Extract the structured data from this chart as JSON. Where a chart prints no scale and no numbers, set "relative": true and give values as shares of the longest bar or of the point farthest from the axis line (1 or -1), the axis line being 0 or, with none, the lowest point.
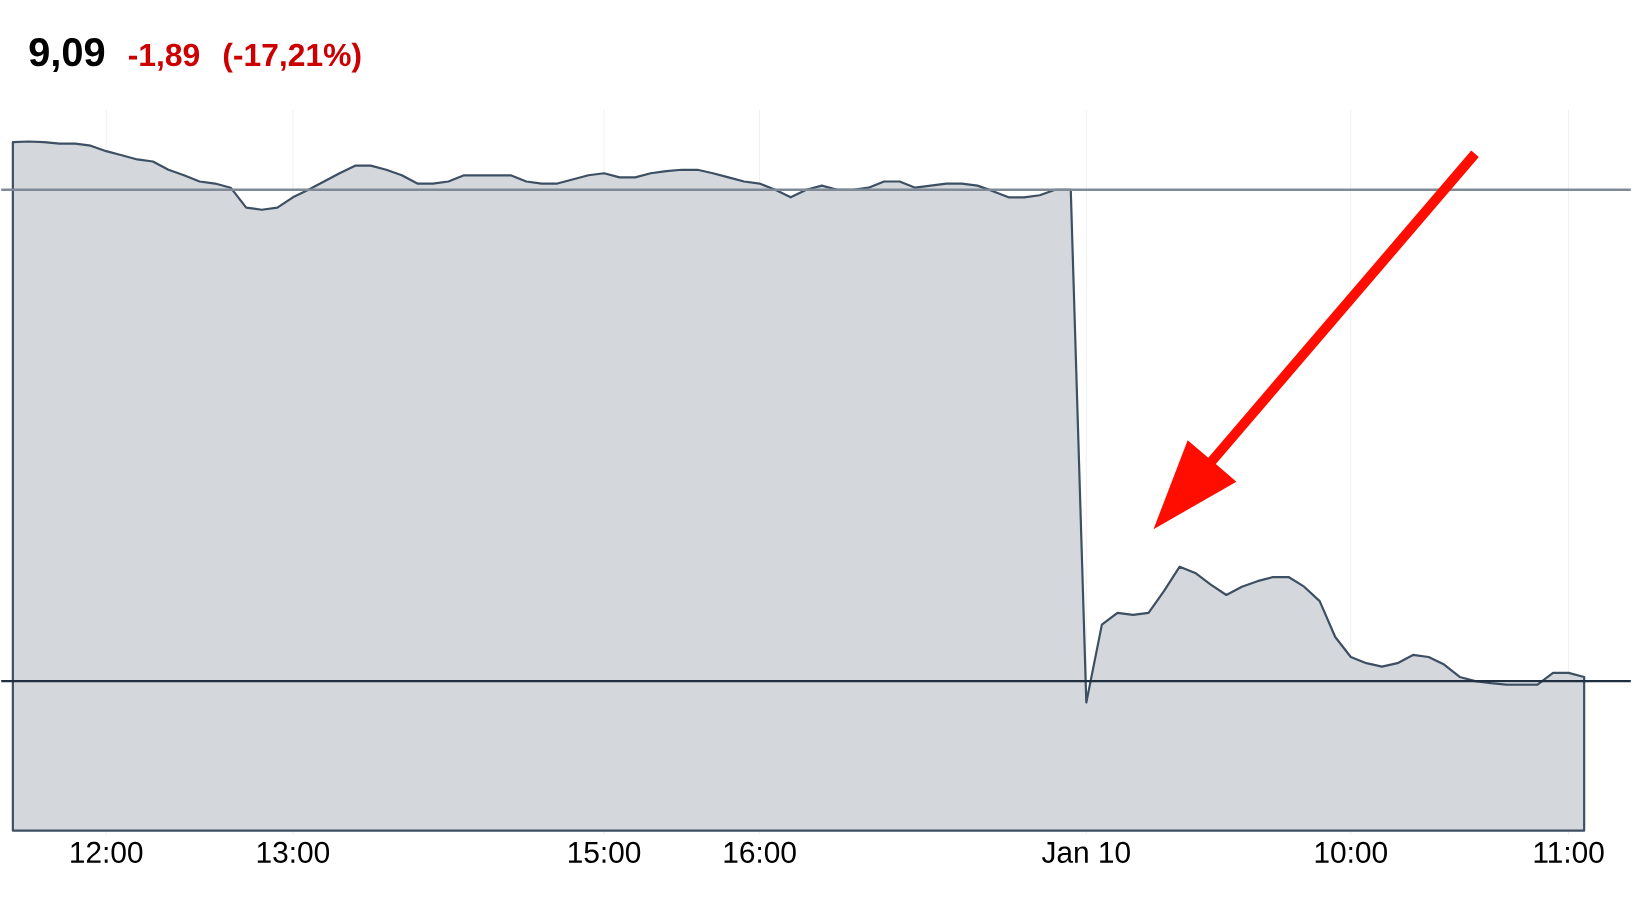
{
  "chart_data": {
    "type": "area",
    "title": "9,09",
    "annotations": [
      "-1,89",
      "(-17,21%)"
    ],
    "relative": true,
    "color": "#3d4f63",
    "grid": "x",
    "categories": [
      null,
      null,
      null,
      null,
      null,
      null,
      "12:00",
      null,
      null,
      null,
      null,
      null,
      null,
      null,
      null,
      null,
      null,
      null,
      "13:00",
      null,
      null,
      null,
      null,
      null,
      null,
      null,
      null,
      null,
      null,
      null,
      null,
      null,
      null,
      null,
      null,
      null,
      null,
      null,
      "15:00",
      null,
      null,
      null,
      null,
      null,
      null,
      null,
      null,
      null,
      "16:00",
      null,
      null,
      null,
      null,
      null,
      null,
      null,
      null,
      null,
      null,
      null,
      null,
      null,
      null,
      null,
      null,
      null,
      null,
      null,
      null,
      "Jan 10",
      null,
      null,
      null,
      null,
      null,
      null,
      null,
      null,
      null,
      null,
      null,
      null,
      null,
      null,
      null,
      null,
      "10:00",
      null,
      null,
      null,
      null,
      null,
      null,
      null,
      null,
      null,
      null,
      null,
      null,
      null,
      "11:00",
      null
    ],
    "values": [
      0.999,
      1,
      0.999,
      0.997,
      0.997,
      0.994,
      0.986,
      0.98,
      0.974,
      0.971,
      0.959,
      0.951,
      0.942,
      0.939,
      0.933,
      0.904,
      0.901,
      0.904,
      0.919,
      0.93,
      0.942,
      0.954,
      0.965,
      0.965,
      0.959,
      0.951,
      0.939,
      0.939,
      0.942,
      0.951,
      0.951,
      0.951,
      0.951,
      0.942,
      0.939,
      0.939,
      0.945,
      0.951,
      0.954,
      0.948,
      0.948,
      0.954,
      0.957,
      0.959,
      0.959,
      0.954,
      0.948,
      0.942,
      0.939,
      0.93,
      0.919,
      0.93,
      0.936,
      0.93,
      0.93,
      0.933,
      0.942,
      0.942,
      0.933,
      0.936,
      0.939,
      0.939,
      0.936,
      0.928,
      0.919,
      0.919,
      0.922,
      0.93,
      0.93,
      0.186,
      0.299,
      0.316,
      0.313,
      0.316,
      0.348,
      0.383,
      0.374,
      0.357,
      0.342,
      0.354,
      0.362,
      0.368,
      0.368,
      0.354,
      0.333,
      0.281,
      0.252,
      0.243,
      0.238,
      0.243,
      0.255,
      0.252,
      0.241,
      0.223,
      0.217,
      0.214,
      0.212,
      0.212,
      0.212,
      0.229,
      0.229,
      0.223
    ],
    "ref_lines": [
      {
        "axis": "y",
        "value": 0.93,
        "color": "#7f8a96"
      },
      {
        "axis": "y",
        "value": 0.217,
        "color": "#1f2f40"
      }
    ]
  }
}
